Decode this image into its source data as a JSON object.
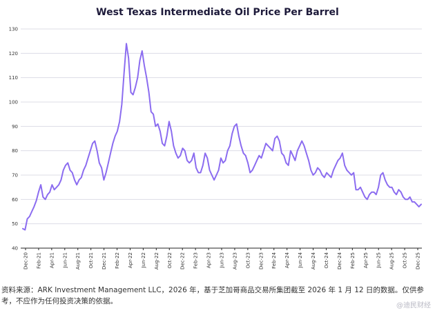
{
  "chart_data": {
    "type": "line",
    "title": "West Texas Intermediate Oil Price Per Barrel",
    "xlabel": "",
    "ylabel": "",
    "ylim": [
      40,
      130
    ],
    "yticks": [
      "130",
      "120",
      "110",
      "100",
      "90",
      "80",
      "70",
      "60",
      "50",
      "40"
    ],
    "xtick_labels": [
      "Dec-20",
      "Feb-21",
      "Apr-21",
      "Jun-21",
      "Aug-21",
      "Oct-21",
      "Dec-21",
      "Feb-22",
      "Apr-22",
      "Jun-22",
      "Aug-22",
      "Oct-22",
      "Dec-22",
      "Feb-23",
      "Apr-23",
      "Jun-23",
      "Aug-23",
      "Oct-23",
      "Dec-23",
      "Feb-24",
      "Apr-24",
      "Jun-24",
      "Aug-24",
      "Oct-24",
      "Dec-24",
      "Feb-25",
      "Apr-25",
      "Jun-25",
      "Aug-25",
      "Oct-25",
      "Dec-25"
    ],
    "grid": true,
    "line_color": "#8b6cf0",
    "series": [
      {
        "values": [
          48,
          47.5,
          52,
          53,
          55,
          57,
          59.5,
          63,
          66,
          61,
          60,
          62,
          63,
          66,
          64,
          65,
          66,
          68,
          72,
          74,
          75,
          72,
          71,
          68,
          66,
          68,
          69,
          72,
          74,
          77,
          80,
          83,
          84,
          80,
          75,
          73,
          68,
          71,
          75,
          79,
          83,
          86,
          88,
          92,
          99,
          112,
          124,
          118,
          104,
          103,
          106,
          110,
          117,
          121,
          115,
          110,
          104,
          96,
          95,
          90,
          91,
          88,
          83,
          82,
          86,
          92,
          88,
          82,
          79,
          77,
          78,
          81,
          80,
          76,
          75,
          76,
          79,
          73,
          71,
          71,
          74,
          79,
          77,
          72,
          70,
          68,
          70,
          72,
          77,
          75,
          76,
          80,
          82,
          87,
          90,
          91,
          86,
          82,
          79,
          78,
          75,
          71,
          72,
          74,
          76,
          78,
          77,
          80,
          83,
          82,
          81,
          80,
          85,
          86,
          84,
          79,
          78,
          75,
          74,
          80,
          78,
          76,
          80,
          82,
          84,
          82,
          79,
          76,
          72,
          70,
          71,
          73,
          72,
          70,
          69,
          71,
          70,
          69,
          72,
          74,
          76,
          77,
          79,
          74,
          72,
          71,
          70,
          71,
          64,
          64,
          65,
          63,
          61,
          60,
          62,
          63,
          63,
          62,
          65,
          70,
          71,
          68,
          66,
          65,
          65,
          63,
          62,
          64,
          63,
          61,
          60,
          60,
          61,
          59,
          59,
          58,
          57,
          58
        ]
      }
    ],
    "source_note": "资料来源：ARK Investment Management LLC，2026 年，基于芝加哥商品交易所集团截至 2026 年 1 月 12 日的数据。仅供参考，不应作为任何投资决策的依据。",
    "watermark": "@迪民财经"
  }
}
